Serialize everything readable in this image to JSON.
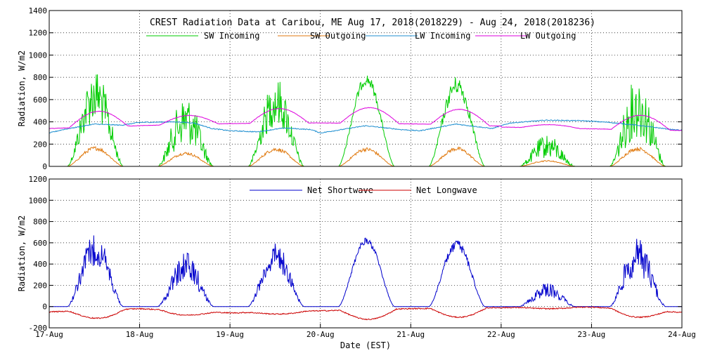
{
  "chart_data": [
    {
      "type": "line",
      "title": "CREST Radiation Data at Caribou, ME   Aug 17, 2018(2018229) - Aug 24, 2018(2018236)",
      "ylabel": "Radiation, W/m2",
      "xlabel": "",
      "x_ticks": [
        "17-Aug",
        "18-Aug",
        "19-Aug",
        "20-Aug",
        "21-Aug",
        "22-Aug",
        "23-Aug",
        "24-Aug"
      ],
      "xlim": [
        0,
        7
      ],
      "ylim": [
        0,
        1400
      ],
      "y_ticks": [
        0,
        200,
        400,
        600,
        800,
        1000,
        1200,
        1400
      ],
      "grid": true,
      "legend_position": "top",
      "series": [
        {
          "name": "SW Incoming",
          "color": "#00cc00",
          "peaks": [
            880,
            640,
            800,
            830,
            810,
            290,
            820
          ],
          "noise": [
            0.55,
            0.7,
            0.55,
            0.12,
            0.2,
            0.75,
            0.7
          ]
        },
        {
          "name": "SW Outgoing",
          "color": "#e07a10",
          "peaks": [
            180,
            130,
            170,
            170,
            175,
            55,
            175
          ]
        },
        {
          "name": "LW Incoming",
          "color": "#1f8fd0",
          "x": [
            0,
            0.15,
            0.5,
            0.8,
            1.0,
            1.4,
            1.6,
            1.8,
            2.0,
            2.3,
            2.6,
            2.9,
            3.0,
            3.5,
            3.9,
            4.1,
            4.5,
            4.9,
            5.1,
            5.5,
            5.9,
            6.2,
            6.5,
            6.9,
            7.0
          ],
          "y": [
            300,
            330,
            380,
            370,
            395,
            400,
            390,
            340,
            320,
            310,
            345,
            330,
            300,
            365,
            330,
            320,
            380,
            340,
            390,
            415,
            410,
            395,
            370,
            330,
            325
          ]
        },
        {
          "name": "LW Outgoing",
          "color": "#dd00dd",
          "amp": [
            140,
            80,
            130,
            140,
            140,
            30,
            130
          ]
        }
      ]
    },
    {
      "type": "line",
      "title": "",
      "ylabel": "Radiation, W/m2",
      "xlabel": "Date (EST)",
      "x_ticks": [
        "17-Aug",
        "18-Aug",
        "19-Aug",
        "20-Aug",
        "21-Aug",
        "22-Aug",
        "23-Aug",
        "24-Aug"
      ],
      "xlim": [
        0,
        7
      ],
      "ylim": [
        -200,
        1200
      ],
      "y_ticks": [
        -200,
        0,
        200,
        400,
        600,
        800,
        1000,
        1200
      ],
      "grid": true,
      "legend_position": "top",
      "series": [
        {
          "name": "Net Shortwave",
          "color": "#0000cc",
          "peaks": [
            690,
            520,
            600,
            650,
            630,
            220,
            640
          ]
        },
        {
          "name": "Net Longwave",
          "color": "#cc0000",
          "night": [
            -50,
            -20,
            -60,
            -40,
            -20,
            -10,
            -5,
            -55
          ],
          "day": [
            -110,
            -80,
            -70,
            -120,
            -100,
            -20,
            -100
          ]
        }
      ]
    }
  ]
}
